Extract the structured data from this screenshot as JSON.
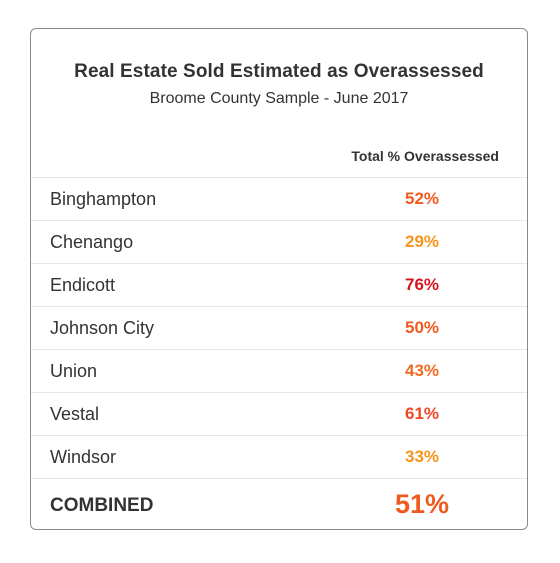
{
  "title": "Real Estate Sold Estimated as Overassessed",
  "subtitle": "Broome County Sample - June 2017",
  "column_header": "Total % Overassessed",
  "rows": [
    {
      "name": "Binghampton",
      "value": "52%",
      "color": "#f05a1e"
    },
    {
      "name": "Chenango",
      "value": "29%",
      "color": "#f7941d"
    },
    {
      "name": "Endicott",
      "value": "76%",
      "color": "#d7141e"
    },
    {
      "name": "Johnson City",
      "value": "50%",
      "color": "#f05a1e"
    },
    {
      "name": "Union",
      "value": "43%",
      "color": "#f26a21"
    },
    {
      "name": "Vestal",
      "value": "61%",
      "color": "#ef4723"
    },
    {
      "name": "Windsor",
      "value": "33%",
      "color": "#f7941d"
    }
  ],
  "combined": {
    "name": "COMBINED",
    "value": "51%",
    "color": "#f05a1e"
  }
}
